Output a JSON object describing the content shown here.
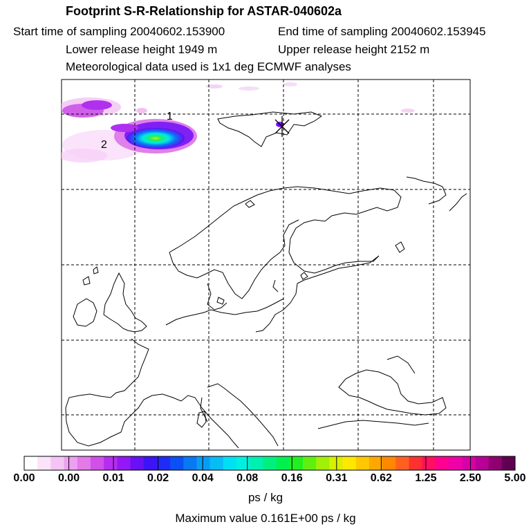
{
  "title": "Footprint S-R-Relationship for ASTAR-040602a",
  "start_sampling": "Start time of sampling 20040602.153900",
  "end_sampling": "End time of sampling 20040602.153945",
  "lower_release": "Lower release height 1949 m",
  "upper_release": "Upper release height 2152 m",
  "met_data": "Meteorological data used is 1x1 deg ECMWF analyses",
  "contour_labels": [
    "1",
    "2"
  ],
  "colorbar": {
    "labels": [
      "0.00",
      "0.00",
      "0.01",
      "0.02",
      "0.04",
      "0.08",
      "0.16",
      "0.31",
      "0.62",
      "1.25",
      "2.50",
      "5.00"
    ],
    "colors": [
      "#ffffff",
      "#fbe3fb",
      "#f5c4f5",
      "#eea0f0",
      "#e27ae8",
      "#d050e8",
      "#b62cf0",
      "#9418f5",
      "#6a10f5",
      "#3c14f5",
      "#1f2cf5",
      "#0a50f5",
      "#0878f5",
      "#0a9cf5",
      "#08bcf5",
      "#00e0f5",
      "#00f0e0",
      "#00f0b0",
      "#00f080",
      "#00f050",
      "#20f020",
      "#60f010",
      "#a0f008",
      "#d8f000",
      "#ffe800",
      "#ffc800",
      "#ffa800",
      "#ff8800",
      "#ff6020",
      "#ff3030",
      "#ff1060",
      "#ff0090",
      "#f000a8",
      "#d800a8",
      "#b80098",
      "#900070",
      "#600050"
    ]
  },
  "unit_label": "ps / kg",
  "max_value": "Maximum value  0.161E+00 ps / kg"
}
